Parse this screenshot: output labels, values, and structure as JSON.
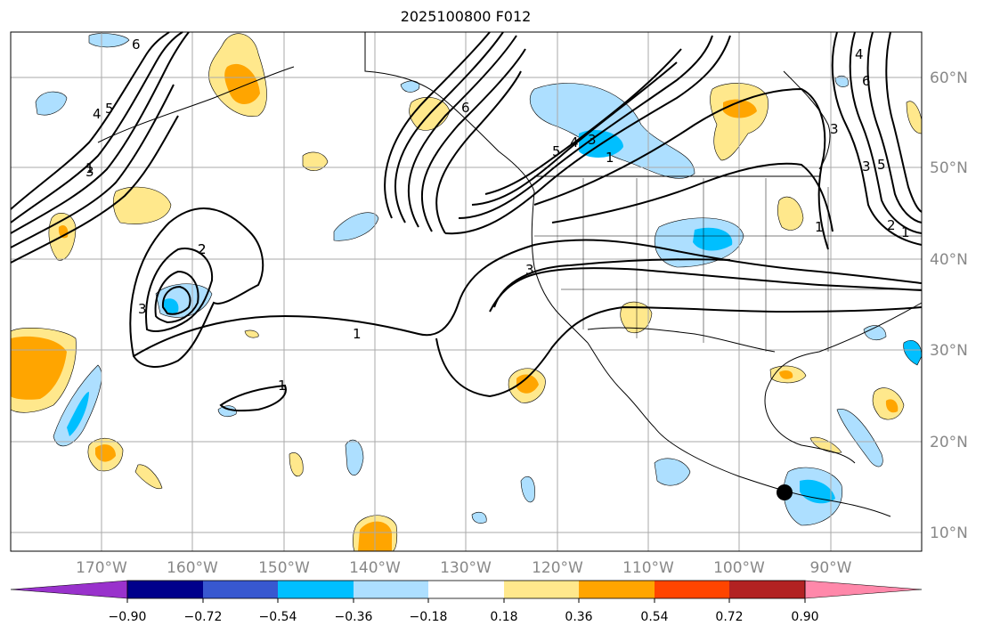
{
  "title": "2025100800 F012",
  "map": {
    "lon_range": [
      -180,
      -80
    ],
    "lat_range": [
      8,
      65
    ],
    "lat_labels": [
      "10°N",
      "20°N",
      "30°N",
      "40°N",
      "50°N",
      "60°N"
    ],
    "lon_labels": [
      "170°W",
      "160°W",
      "150°W",
      "140°W",
      "130°W",
      "120°W",
      "110°W",
      "100°W",
      "90°W"
    ],
    "contour_labels": [
      "6",
      "5",
      "4",
      "3",
      "2",
      "1",
      "1",
      "2",
      "3",
      "3",
      "1",
      "1",
      "6",
      "5",
      "4",
      "3",
      "1",
      "3",
      "4",
      "6",
      "3",
      "5",
      "2",
      "1"
    ],
    "marker": {
      "name": "storm-center",
      "lon": -95,
      "lat": 14.5
    }
  },
  "colorbar": {
    "ticks": [
      "−0.90",
      "−0.72",
      "−0.54",
      "−0.36",
      "−0.18",
      "0.18",
      "0.36",
      "0.54",
      "0.72",
      "0.90"
    ],
    "colors": [
      "#9932cc",
      "#00008b",
      "#3858d0",
      "#00bfff",
      "#addfff",
      "#ffffff",
      "#ffe88c",
      "#ffa500",
      "#ff4500",
      "#b22222",
      "#ff88aa"
    ]
  },
  "palette": {
    "gold": "#ffe88c",
    "orange": "#ffa500",
    "lightblue": "#addfff",
    "cyan": "#00bfff",
    "grid": "#aaaaaa"
  }
}
